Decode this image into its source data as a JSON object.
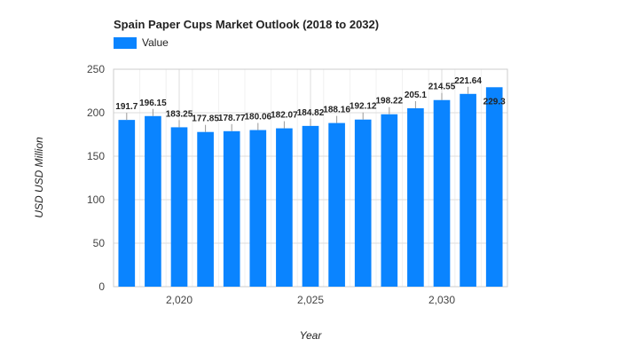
{
  "chart_data": {
    "type": "bar",
    "title": "Spain Paper Cups Market Outlook (2018 to 2032)",
    "xlabel": "Year",
    "ylabel": "USD USD Million",
    "legend": "top-left",
    "grid": true,
    "ylim": [
      0,
      250
    ],
    "yticks": [
      0,
      50,
      100,
      150,
      200,
      250
    ],
    "xtick_labels": [
      "2,020",
      "2,025",
      "2,030"
    ],
    "categories": [
      2018,
      2019,
      2020,
      2021,
      2022,
      2023,
      2024,
      2025,
      2026,
      2027,
      2028,
      2029,
      2030,
      2031,
      2032
    ],
    "series": [
      {
        "name": "Value",
        "color": "#0a84ff",
        "values": [
          191.7,
          196.15,
          183.25,
          177.85,
          178.77,
          180.06,
          182.07,
          184.82,
          188.16,
          192.12,
          198.22,
          205.1,
          214.55,
          221.64,
          229.3
        ],
        "labels": [
          "191.7",
          "196.15",
          "183.25",
          "177.85",
          "178.77",
          "180.06",
          "182.07",
          "184.82",
          "188.16",
          "192.12",
          "198.22",
          "205.1",
          "214.55",
          "221.64",
          "229.3"
        ]
      }
    ]
  }
}
